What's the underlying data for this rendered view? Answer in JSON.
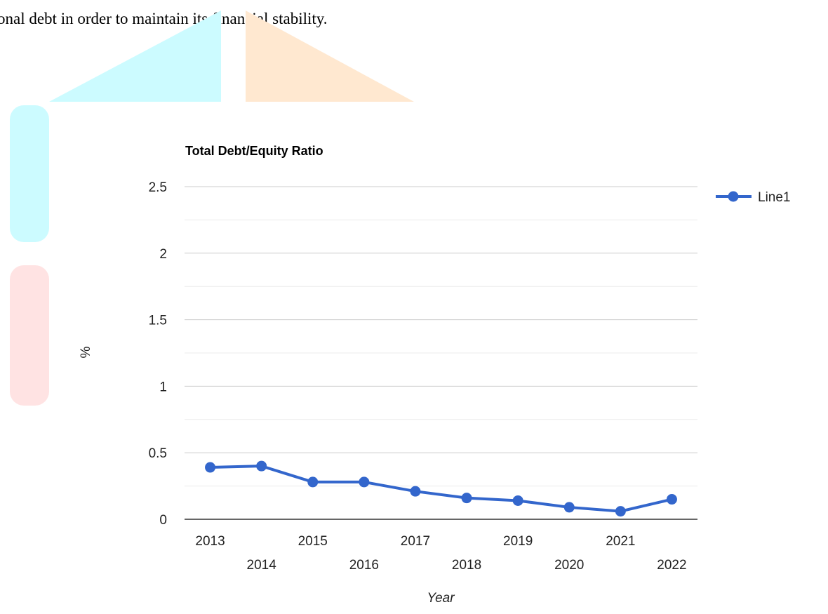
{
  "document": {
    "text_line": "onal debt in order to maintain its financial stability."
  },
  "colors": {
    "series": "#3366cc",
    "grid_major": "#cccccc",
    "grid_minor": "#ebebeb",
    "baseline": "#333333",
    "watermark_cyan": "#ccfbff",
    "watermark_orange": "#ffe8d0",
    "watermark_red": "#ffe3e3"
  },
  "chart_data": {
    "type": "line",
    "title": "Total Debt/Equity Ratio",
    "xlabel": "Year",
    "ylabel": "%",
    "categories": [
      "2013",
      "2014",
      "2015",
      "2016",
      "2017",
      "2018",
      "2019",
      "2020",
      "2021",
      "2022"
    ],
    "series": [
      {
        "name": "Line1",
        "values": [
          0.39,
          0.4,
          0.28,
          0.28,
          0.21,
          0.16,
          0.14,
          0.09,
          0.06,
          0.15
        ]
      }
    ],
    "ylim": [
      0,
      2.5
    ],
    "yticks": [
      "0",
      "0.5",
      "1",
      "1.5",
      "2",
      "2.5"
    ],
    "grid": true,
    "legend_position": "right"
  }
}
